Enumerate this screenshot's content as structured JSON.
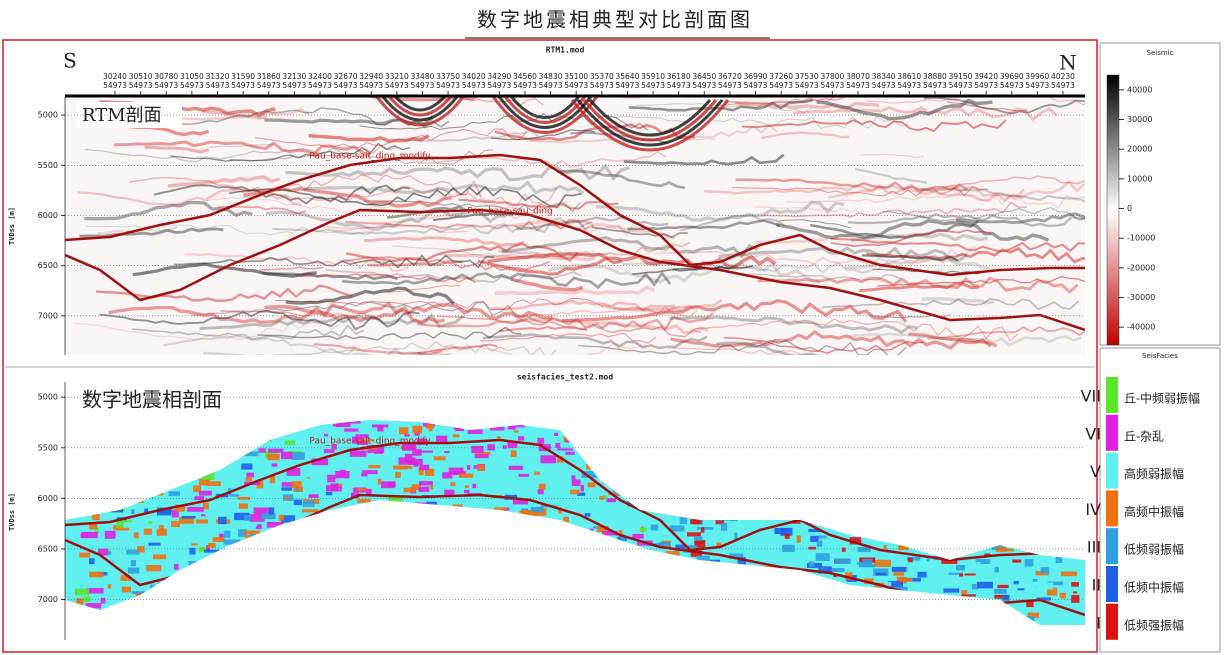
{
  "title": "数字地震相典型对比剖面图",
  "rtm_panel": {
    "title": "RTM1.mod",
    "label": "RTM剖面",
    "left_end": "S",
    "right_end": "N",
    "inlines": [
      30240,
      30510,
      30780,
      31050,
      31320,
      31590,
      31860,
      32130,
      32400,
      32670,
      32940,
      33210,
      33480,
      33750,
      34020,
      34290,
      34560,
      34830,
      35100,
      35370,
      35640,
      35910,
      36180,
      36450,
      36720,
      36990,
      37260,
      37530,
      37800,
      38070,
      38340,
      38610,
      38880,
      39150,
      39420,
      39690,
      39960,
      40230
    ],
    "xlim": [
      29713,
      40462
    ],
    "crossline": 54973,
    "y_label": "TVDss [m]",
    "ylim": [
      4820,
      7390
    ],
    "yticks": [
      5000,
      5500,
      6000,
      6500,
      7000
    ],
    "horizons": [
      "Pau_base-salt_ding_modify",
      "Pau_base-sau_ding"
    ]
  },
  "colorbar": {
    "title": "Seismic",
    "lim": [
      -46000,
      45000
    ],
    "ticks": [
      40000,
      30000,
      20000,
      10000,
      0,
      -10000,
      -20000,
      -30000,
      -40000
    ]
  },
  "facies_panel": {
    "title": "seisfacies_test2.mod",
    "label": "数字地震相剖面",
    "y_label": "TVDss [m]",
    "ylim": [
      4850,
      7400
    ],
    "yticks": [
      5000,
      5500,
      6000,
      6500,
      7000
    ],
    "horizons": [
      "Pau_base-salt_ding_modify"
    ]
  },
  "legend": {
    "title": "SeisFacies",
    "items": [
      {
        "numeral": "VII",
        "label": "丘-中频弱振幅",
        "color": "#5ce62a"
      },
      {
        "numeral": "VI",
        "label": "丘-杂乱",
        "color": "#e020e0"
      },
      {
        "numeral": "V",
        "label": "高频弱振幅",
        "color": "#60f0f0"
      },
      {
        "numeral": "IV",
        "label": "高频中振幅",
        "color": "#f07010"
      },
      {
        "numeral": "III",
        "label": "低频弱振幅",
        "color": "#30a0e0"
      },
      {
        "numeral": "II",
        "label": "低频中振幅",
        "color": "#1f5fe8"
      },
      {
        "numeral": "I",
        "label": "低频强振幅",
        "color": "#e01010"
      }
    ]
  }
}
